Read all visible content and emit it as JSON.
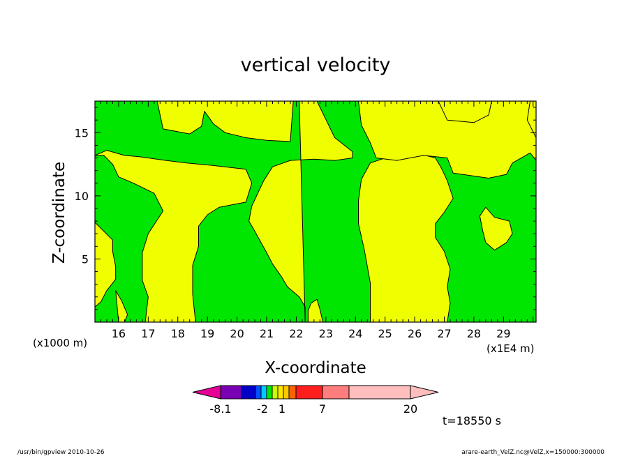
{
  "chart_data": {
    "type": "heatmap",
    "title": "vertical velocity",
    "xlabel": "X-coordinate",
    "ylabel": "Z-coordinate",
    "x_unit_left": "(x1000 m)",
    "x_unit_right": "(x1E4 m)",
    "xlim": [
      15.2,
      30.1
    ],
    "ylim": [
      0,
      17.5
    ],
    "x_ticks": [
      "16",
      "17",
      "18",
      "19",
      "20",
      "21",
      "22",
      "23",
      "24",
      "25",
      "26",
      "27",
      "28",
      "29"
    ],
    "y_ticks": [
      "5",
      "10",
      "15"
    ],
    "grid": false,
    "colors": {
      "positive_region": "#f0ff00",
      "negative_region": "#00e600",
      "contour": "#000000"
    },
    "regions": [
      {
        "sign": "positive",
        "polygon": [
          [
            16.8,
            17.5
          ],
          [
            17.3,
            17.5
          ],
          [
            17.5,
            15.3
          ],
          [
            18.4,
            14.9
          ],
          [
            18.8,
            15.5
          ],
          [
            18.9,
            16.7
          ],
          [
            19.2,
            15.7
          ],
          [
            19.6,
            15.0
          ],
          [
            20.3,
            14.6
          ],
          [
            21.0,
            14.4
          ],
          [
            21.8,
            14.3
          ],
          [
            21.9,
            17.5
          ]
        ]
      },
      {
        "sign": "positive",
        "polygon": [
          [
            22.1,
            17.5
          ],
          [
            22.7,
            17.5
          ],
          [
            23.3,
            14.6
          ],
          [
            23.9,
            13.5
          ],
          [
            23.9,
            13.0
          ],
          [
            23.3,
            12.8
          ],
          [
            22.6,
            12.9
          ],
          [
            21.8,
            12.8
          ],
          [
            21.2,
            12.3
          ],
          [
            20.9,
            11.2
          ],
          [
            20.5,
            9.2
          ],
          [
            20.4,
            8.0
          ],
          [
            20.6,
            7.2
          ],
          [
            21.0,
            5.5
          ],
          [
            21.2,
            4.6
          ],
          [
            21.5,
            3.6
          ],
          [
            21.7,
            2.8
          ],
          [
            22.1,
            2.0
          ],
          [
            22.3,
            1.2
          ],
          [
            22.3,
            0
          ]
        ]
      },
      {
        "sign": "positive",
        "polygon": [
          [
            15.2,
            17.5
          ],
          [
            15.2,
            13.2
          ],
          [
            15.6,
            13.6
          ],
          [
            16.2,
            13.2
          ],
          [
            16.7,
            13.1
          ],
          [
            17.6,
            12.8
          ],
          [
            18.3,
            12.6
          ],
          [
            19.2,
            12.4
          ],
          [
            20.3,
            12.1
          ],
          [
            20.5,
            11.0
          ],
          [
            20.3,
            9.5
          ],
          [
            19.4,
            9.1
          ],
          [
            19.0,
            8.5
          ],
          [
            18.7,
            7.6
          ],
          [
            18.7,
            6.0
          ],
          [
            18.5,
            4.5
          ],
          [
            18.5,
            2.2
          ],
          [
            18.6,
            0
          ],
          [
            16.9,
            0
          ],
          [
            17.0,
            2.0
          ],
          [
            16.8,
            3.3
          ],
          [
            16.8,
            5.5
          ],
          [
            17.0,
            7.0
          ],
          [
            17.5,
            8.8
          ],
          [
            17.2,
            10.2
          ],
          [
            16.5,
            11.0
          ],
          [
            16.0,
            11.5
          ],
          [
            15.8,
            12.5
          ],
          [
            15.5,
            13.2
          ],
          [
            15.2,
            13.2
          ]
        ]
      },
      {
        "sign": "positive",
        "polygon": [
          [
            24.5,
            0
          ],
          [
            24.5,
            3.1
          ],
          [
            24.3,
            5.7
          ],
          [
            24.1,
            7.8
          ],
          [
            24.1,
            9.6
          ],
          [
            24.2,
            11.3
          ],
          [
            24.5,
            12.6
          ],
          [
            25.0,
            13.0
          ],
          [
            25.6,
            13.1
          ],
          [
            26.2,
            13.3
          ],
          [
            26.7,
            13.0
          ],
          [
            26.9,
            12.2
          ],
          [
            27.1,
            11.2
          ],
          [
            27.3,
            9.8
          ],
          [
            27.0,
            8.7
          ],
          [
            26.7,
            7.8
          ],
          [
            26.7,
            6.7
          ],
          [
            27.0,
            5.6
          ],
          [
            27.2,
            4.2
          ],
          [
            27.1,
            2.8
          ],
          [
            27.2,
            1.5
          ],
          [
            27.1,
            0
          ]
        ]
      },
      {
        "sign": "positive",
        "polygon": [
          [
            24.1,
            17.5
          ],
          [
            24.2,
            15.6
          ],
          [
            24.5,
            14.2
          ],
          [
            24.7,
            13.0
          ],
          [
            25.4,
            12.8
          ],
          [
            26.3,
            13.2
          ],
          [
            27.1,
            13.0
          ],
          [
            27.3,
            11.8
          ],
          [
            28.5,
            11.4
          ],
          [
            29.1,
            11.7
          ],
          [
            29.3,
            12.6
          ],
          [
            29.9,
            13.4
          ],
          [
            30.1,
            12.8
          ],
          [
            30.1,
            17.5
          ]
        ]
      },
      {
        "sign": "positive",
        "polygon": [
          [
            26.8,
            17.5
          ],
          [
            28.6,
            17.5
          ],
          [
            28.5,
            16.4
          ],
          [
            28.0,
            15.8
          ],
          [
            27.1,
            16.0
          ]
        ]
      },
      {
        "sign": "positive",
        "polygon": [
          [
            28.4,
            9.1
          ],
          [
            28.7,
            8.3
          ],
          [
            29.2,
            8.0
          ],
          [
            29.3,
            7.0
          ],
          [
            29.1,
            6.3
          ],
          [
            28.7,
            5.7
          ],
          [
            28.4,
            6.3
          ],
          [
            28.3,
            7.2
          ],
          [
            28.2,
            8.4
          ]
        ]
      },
      {
        "sign": "positive",
        "polygon": [
          [
            15.2,
            7.9
          ],
          [
            15.5,
            7.2
          ],
          [
            15.8,
            6.5
          ],
          [
            15.8,
            5.6
          ],
          [
            15.9,
            4.4
          ],
          [
            15.9,
            3.4
          ],
          [
            15.6,
            2.5
          ],
          [
            15.4,
            1.6
          ],
          [
            15.2,
            1.2
          ]
        ]
      },
      {
        "sign": "positive",
        "polygon": [
          [
            29.9,
            17.5
          ],
          [
            30.1,
            17.5
          ],
          [
            30.1,
            14.6
          ],
          [
            29.8,
            16.0
          ]
        ]
      },
      {
        "sign": "positive",
        "polygon": [
          [
            22.4,
            0
          ],
          [
            22.9,
            0
          ],
          [
            22.8,
            1.0
          ],
          [
            22.7,
            1.8
          ],
          [
            22.5,
            1.5
          ],
          [
            22.4,
            0.9
          ]
        ]
      },
      {
        "sign": "positive",
        "polygon": [
          [
            15.9,
            2.5
          ],
          [
            16.1,
            1.7
          ],
          [
            16.3,
            0.6
          ],
          [
            16.2,
            0
          ],
          [
            16.0,
            0
          ]
        ]
      }
    ],
    "contour_levels": [
      "-8.1",
      "-2",
      "1",
      "7",
      "20"
    ],
    "colorbar": [
      "#e60096",
      "#7a00b4",
      "#0000c8",
      "#0050ff",
      "#00c8ff",
      "#00e600",
      "#c8ff00",
      "#ffe600",
      "#ffc800",
      "#ff6400",
      "#ff1e1e",
      "#ff7d7d",
      "#ffbebe"
    ],
    "colorbar_labels": [
      {
        "text": "-8.1",
        "at": 1
      },
      {
        "text": "-2",
        "at": 3.5
      },
      {
        "text": "1",
        "at": 5
      },
      {
        "text": "7",
        "at": 8
      },
      {
        "text": "20",
        "at": 12
      }
    ],
    "time_label": "t=18550 s",
    "footer_left": "/usr/bin/gpview   2010-10-26",
    "footer_right": "arare-earth_VelZ.nc@VelZ,x=150000:300000"
  }
}
